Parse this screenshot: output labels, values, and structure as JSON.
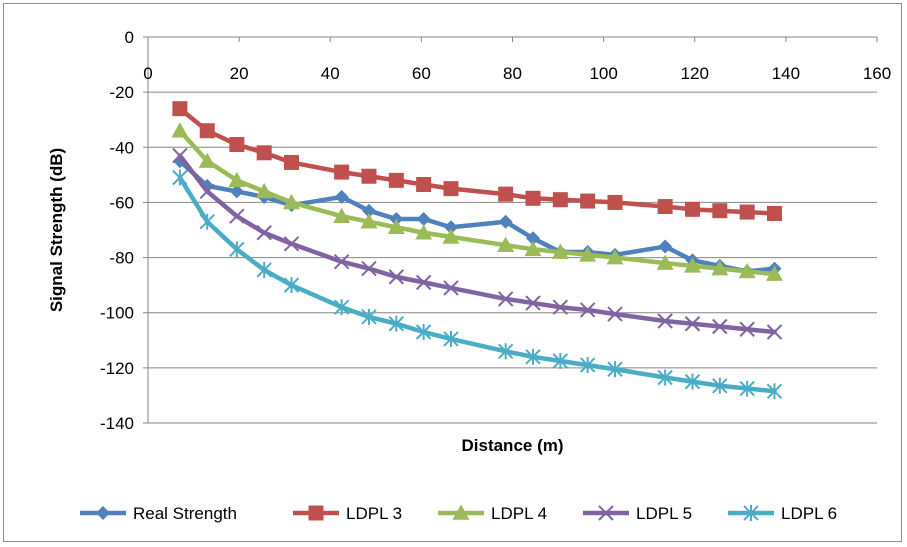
{
  "chart_data": {
    "type": "line",
    "xlabel": "Distance (m)",
    "ylabel": "Signal Strength (dB)",
    "xlim": [
      0,
      160
    ],
    "ylim": [
      -140,
      0
    ],
    "x_ticks": [
      "0",
      "20",
      "40",
      "60",
      "80",
      "100",
      "120",
      "140",
      "160"
    ],
    "y_ticks": [
      "0",
      "-20",
      "-40",
      "-60",
      "-80",
      "-100",
      "-120",
      "-140"
    ],
    "x_axis_position": "top (crosses at y = 0)",
    "grid": "horizontal",
    "legend_position": "bottom",
    "series": [
      {
        "name": "Real Strength",
        "color": "#4F81BD",
        "marker": "diamond",
        "x": [
          7,
          13,
          19.5,
          25.5,
          31.5,
          42.5,
          48.5,
          54.5,
          60.5,
          66.5,
          78.5,
          84.5,
          90.5,
          96.5,
          102.5,
          113.5,
          119.5,
          125.5,
          131.5,
          137.5
        ],
        "y": [
          -45,
          -54,
          -56,
          -58,
          -61,
          -58,
          -63,
          -66,
          -66,
          -69,
          -67,
          -73,
          -78,
          -78,
          -79,
          -76,
          -81,
          -83,
          -85,
          -84
        ]
      },
      {
        "name": "LDPL 3",
        "color": "#C0504D",
        "marker": "square",
        "x": [
          7,
          13,
          19.5,
          25.5,
          31.5,
          42.5,
          48.5,
          54.5,
          60.5,
          66.5,
          78.5,
          84.5,
          90.5,
          96.5,
          102.5,
          113.5,
          119.5,
          125.5,
          131.5,
          137.5
        ],
        "y": [
          -26,
          -34,
          -39,
          -42,
          -45.5,
          -49,
          -50.5,
          -52,
          -53.5,
          -55,
          -57,
          -58.5,
          -59,
          -59.5,
          -60,
          -61.5,
          -62.5,
          -63,
          -63.5,
          -64
        ]
      },
      {
        "name": "LDPL 4",
        "color": "#9BBB59",
        "marker": "triangle",
        "x": [
          7,
          13,
          19.5,
          25.5,
          31.5,
          42.5,
          48.5,
          54.5,
          60.5,
          66.5,
          78.5,
          84.5,
          90.5,
          96.5,
          102.5,
          113.5,
          119.5,
          125.5,
          131.5,
          137.5
        ],
        "y": [
          -34,
          -45,
          -52,
          -56,
          -60,
          -65,
          -67,
          -69,
          -71,
          -72.5,
          -75.5,
          -77,
          -78,
          -79,
          -80,
          -82,
          -83,
          -84,
          -85,
          -86
        ]
      },
      {
        "name": "LDPL 5",
        "color": "#8064A2",
        "marker": "x",
        "x": [
          7,
          13,
          19.5,
          25.5,
          31.5,
          42.5,
          48.5,
          54.5,
          60.5,
          66.5,
          78.5,
          84.5,
          90.5,
          96.5,
          102.5,
          113.5,
          119.5,
          125.5,
          131.5,
          137.5
        ],
        "y": [
          -43,
          -56,
          -65,
          -71,
          -75,
          -81.5,
          -84,
          -87,
          -89,
          -91,
          -95,
          -96.5,
          -98,
          -99,
          -100.5,
          -103,
          -104,
          -105,
          -106,
          -107
        ]
      },
      {
        "name": "LDPL 6",
        "color": "#4BACC6",
        "marker": "star",
        "x": [
          7,
          13,
          19.5,
          25.5,
          31.5,
          42.5,
          48.5,
          54.5,
          60.5,
          66.5,
          78.5,
          84.5,
          90.5,
          96.5,
          102.5,
          113.5,
          119.5,
          125.5,
          131.5,
          137.5
        ],
        "y": [
          -51,
          -67,
          -77,
          -84.5,
          -90,
          -98,
          -101.5,
          -104,
          -107,
          -109.5,
          -114,
          -116,
          -117.5,
          -119,
          -120.5,
          -123.5,
          -125,
          -126.5,
          -127.5,
          -128.5
        ]
      }
    ]
  }
}
